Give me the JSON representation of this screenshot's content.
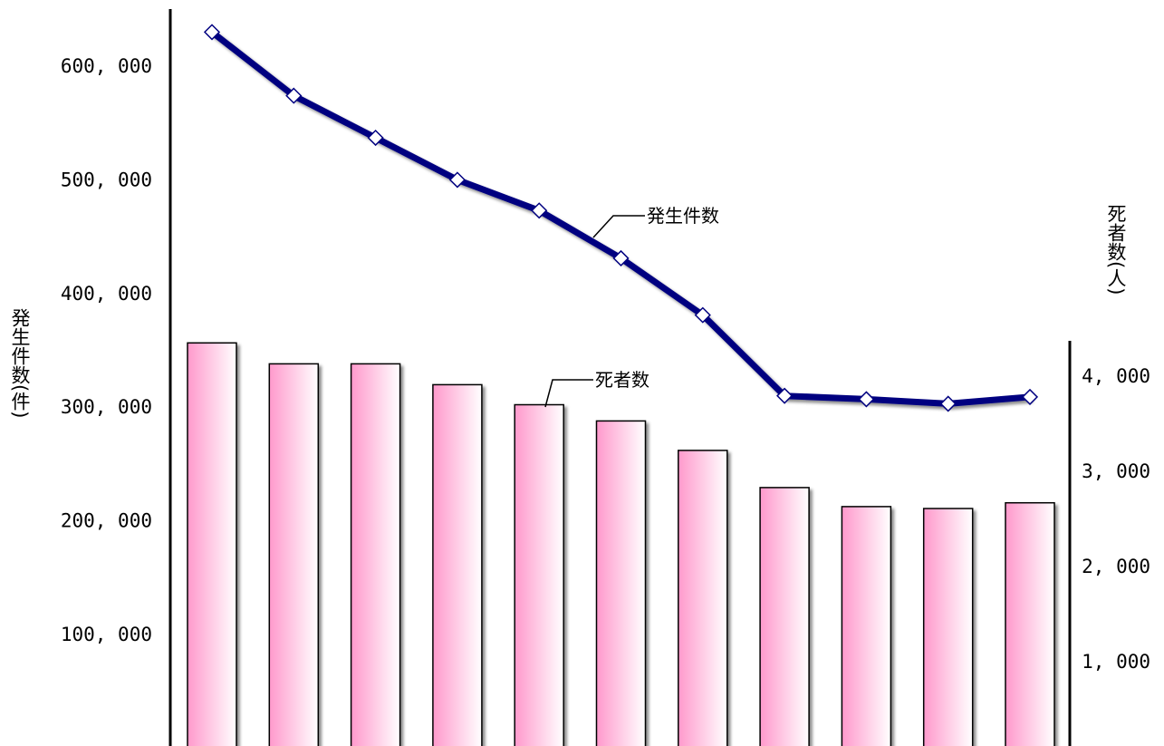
{
  "colors": {
    "line": "#000080",
    "bar_fill_start": "#ff99cc",
    "bar_fill_end": "#ffffff",
    "bar_stroke": "#000000",
    "marker_fill": "#ffffff"
  },
  "chart_data": {
    "type": "bar+line",
    "title": "",
    "categories": [
      "",
      "",
      "",
      "",
      "",
      "",
      "",
      "",
      "",
      "",
      ""
    ],
    "left_axis": {
      "label": "発生件数(件)",
      "ticks": [
        "100, 000",
        "200, 000",
        "300, 000",
        "400, 000",
        "500, 000",
        "600, 000"
      ],
      "tick_values": [
        100000,
        200000,
        300000,
        400000,
        500000,
        600000
      ],
      "range": [
        0,
        650000
      ]
    },
    "right_axis": {
      "label": "死者数(人)",
      "ticks": [
        "1, 000",
        "2, 000",
        "3, 000",
        "4, 000"
      ],
      "tick_values": [
        1000,
        2000,
        3000,
        4000
      ],
      "range": [
        0,
        4350
      ]
    },
    "series": [
      {
        "name": "発生件数",
        "type": "line",
        "axis": "left",
        "values": [
          630000,
          574000,
          537000,
          500000,
          473000,
          431000,
          381000,
          310000,
          307000,
          303000,
          309000
        ]
      },
      {
        "name": "死者数",
        "type": "bar",
        "axis": "right",
        "values": [
          4350,
          4130,
          4130,
          3910,
          3700,
          3530,
          3220,
          2830,
          2630,
          2610,
          2670
        ]
      }
    ],
    "grid": false,
    "legend": "none"
  }
}
